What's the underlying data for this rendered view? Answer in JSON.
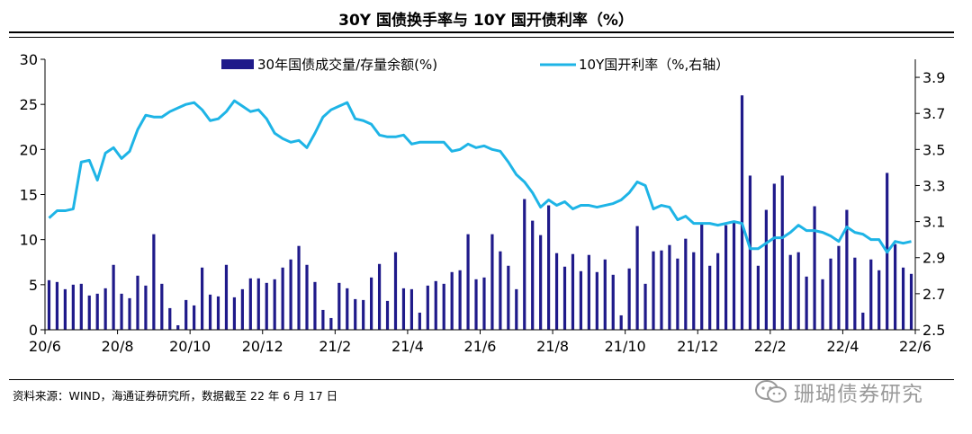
{
  "title": "30Y 国债换手率与 10Y 国开债利率（%）",
  "source_note": "资料来源：WIND，海通证券研究所，数据截至 22 年 6 月 17 日",
  "watermark": "珊瑚债券研究",
  "colors": {
    "bar": "#1f1a8a",
    "line": "#1eb4e6",
    "axis": "#000000"
  },
  "chart_data": {
    "type": "bar+line",
    "x_tick_labels": [
      "20/6",
      "20/8",
      "20/10",
      "20/12",
      "21/2",
      "21/4",
      "21/6",
      "21/8",
      "21/10",
      "21/12",
      "22/2",
      "22/4",
      "22/6"
    ],
    "y_left": {
      "min": 0,
      "max": 30,
      "ticks": [
        0,
        5,
        10,
        15,
        20,
        25,
        30
      ]
    },
    "y_right": {
      "min": 2.5,
      "max": 4.0,
      "ticks": [
        2.5,
        2.7,
        2.9,
        3.1,
        3.3,
        3.5,
        3.7,
        3.9
      ],
      "tick_labels": [
        "2.5",
        "2.7",
        "2.9",
        "3.1",
        "3.3",
        "3.5",
        "3.7",
        "3.9"
      ]
    },
    "series": [
      {
        "name": "30年国债成交量/存量余额(%)",
        "kind": "bar",
        "axis": "left",
        "values": [
          5.5,
          5.3,
          4.5,
          5.0,
          5.1,
          3.8,
          4.0,
          4.6,
          7.2,
          4.0,
          3.5,
          6.0,
          4.9,
          10.6,
          5.1,
          2.4,
          0.5,
          3.3,
          2.7,
          6.9,
          3.9,
          3.7,
          7.2,
          3.6,
          4.5,
          5.7,
          5.7,
          5.2,
          5.6,
          6.9,
          7.8,
          9.3,
          7.2,
          5.3,
          2.2,
          1.3,
          5.2,
          4.6,
          3.4,
          3.3,
          5.8,
          7.3,
          3.2,
          8.6,
          4.6,
          4.5,
          1.9,
          4.9,
          5.4,
          5.1,
          6.4,
          6.6,
          10.6,
          5.6,
          5.8,
          10.6,
          8.7,
          7.1,
          4.5,
          14.5,
          12.1,
          10.5,
          13.8,
          8.5,
          7.0,
          8.4,
          6.5,
          8.3,
          6.4,
          7.8,
          6.1,
          1.6,
          6.8,
          11.5,
          5.1,
          8.7,
          8.8,
          9.4,
          7.9,
          10.1,
          8.6,
          11.7,
          7.1,
          8.5,
          11.6,
          12.1,
          26.0,
          17.1,
          7.1,
          13.3,
          16.2,
          17.1,
          8.3,
          8.6,
          5.9,
          13.7,
          5.6,
          7.9,
          9.3,
          13.3,
          8.0,
          1.9,
          7.8,
          6.6,
          17.4,
          9.5,
          6.9,
          6.2
        ]
      },
      {
        "name": "10Y国开利率（%,右轴）",
        "kind": "line",
        "axis": "right",
        "values": [
          3.12,
          3.16,
          3.16,
          3.17,
          3.43,
          3.44,
          3.33,
          3.48,
          3.51,
          3.45,
          3.49,
          3.61,
          3.69,
          3.68,
          3.68,
          3.71,
          3.73,
          3.75,
          3.76,
          3.72,
          3.66,
          3.67,
          3.71,
          3.77,
          3.74,
          3.71,
          3.72,
          3.67,
          3.59,
          3.56,
          3.54,
          3.55,
          3.51,
          3.59,
          3.68,
          3.72,
          3.74,
          3.76,
          3.67,
          3.66,
          3.64,
          3.58,
          3.57,
          3.57,
          3.58,
          3.53,
          3.54,
          3.54,
          3.54,
          3.54,
          3.49,
          3.5,
          3.53,
          3.51,
          3.52,
          3.5,
          3.49,
          3.43,
          3.36,
          3.32,
          3.26,
          3.18,
          3.22,
          3.19,
          3.21,
          3.17,
          3.19,
          3.19,
          3.18,
          3.19,
          3.2,
          3.22,
          3.26,
          3.32,
          3.3,
          3.17,
          3.19,
          3.18,
          3.11,
          3.13,
          3.09,
          3.09,
          3.09,
          3.08,
          3.09,
          3.1,
          3.09,
          2.95,
          2.95,
          2.98,
          3.01,
          3.01,
          3.04,
          3.08,
          3.05,
          3.05,
          3.04,
          3.02,
          2.99,
          3.07,
          3.04,
          3.03,
          3.0,
          3.0,
          2.93,
          2.99,
          2.98,
          2.99
        ]
      }
    ]
  }
}
